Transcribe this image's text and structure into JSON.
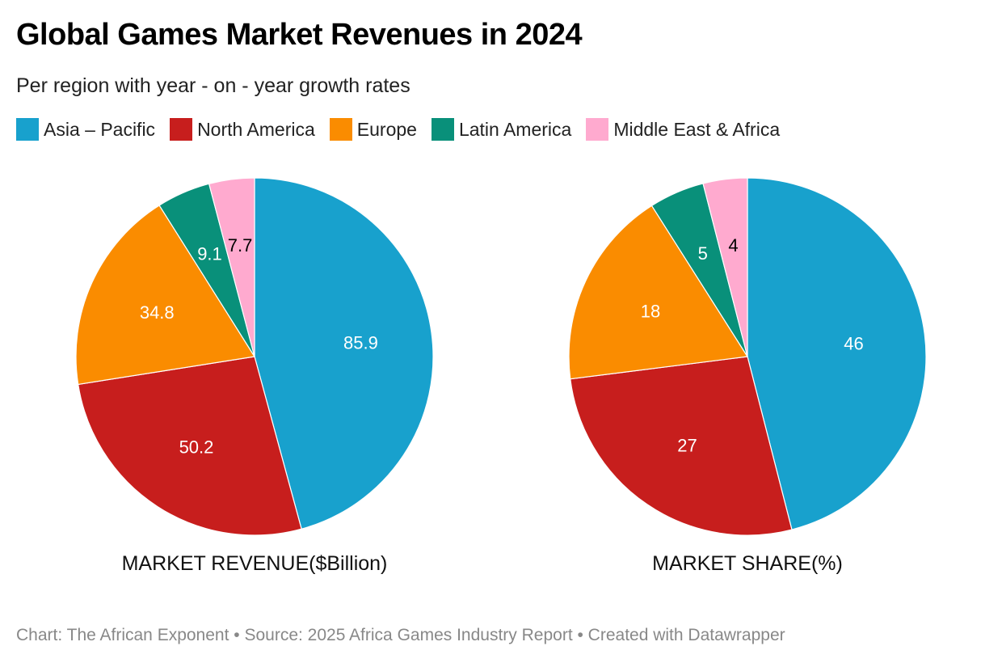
{
  "title": "Global Games Market Revenues in 2024",
  "subtitle": "Per region with year - on - year growth rates",
  "legend": [
    {
      "label": "Asia – Pacific",
      "color": "#18a1cd"
    },
    {
      "label": "North America",
      "color": "#c71e1d"
    },
    {
      "label": "Europe",
      "color": "#fa8c00"
    },
    {
      "label": "Latin America",
      "color": "#09907a"
    },
    {
      "label": "Middle East & Africa",
      "color": "#ffaacf"
    }
  ],
  "footer": "Chart: The African Exponent • Source: 2025 Africa Games Industry Report • Created with Datawrapper",
  "chart_data": [
    {
      "type": "pie",
      "title": "MARKET REVENUE($Billion)",
      "categories": [
        "Asia – Pacific",
        "North America",
        "Europe",
        "Latin America",
        "Middle East & Africa"
      ],
      "values": [
        85.9,
        50.2,
        34.8,
        9.1,
        7.7
      ],
      "labels": [
        "85.9",
        "50.2",
        "34.8",
        "9.1",
        "7.7"
      ],
      "label_colors": [
        "#ffffff",
        "#ffffff",
        "#ffffff",
        "#ffffff",
        "#000000"
      ]
    },
    {
      "type": "pie",
      "title": "MARKET SHARE(%)",
      "categories": [
        "Asia – Pacific",
        "North America",
        "Europe",
        "Latin America",
        "Middle East & Africa"
      ],
      "values": [
        46,
        27,
        18,
        5,
        4
      ],
      "labels": [
        "46",
        "27",
        "18",
        "5",
        "4"
      ],
      "label_colors": [
        "#ffffff",
        "#ffffff",
        "#ffffff",
        "#ffffff",
        "#000000"
      ]
    }
  ]
}
